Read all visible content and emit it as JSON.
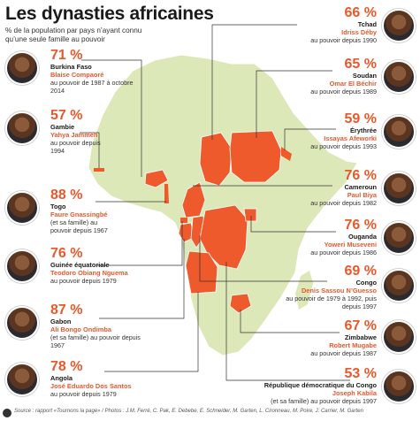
{
  "title": "Les dynasties africaines",
  "subtitle": "% de la population par pays n’ayant connu qu’une seule famille au pouvoir",
  "footer": "Source : rapport «Tournons la page» / Photos : J.M. Ferré, C. Pak, E. Debebe, E. Schneider, M. Garten, L. Cironneau, M. Poire, J. Carrier, M. Garten",
  "colors": {
    "accent": "#e8582c",
    "land": "#dde8b9",
    "highlight": "#ee5a2c"
  },
  "left": [
    {
      "pct": "71 %",
      "country": "Burkina Faso",
      "leader": "Blaise Compaoré",
      "since": "au pouvoir de 1987 à octobre 2014"
    },
    {
      "pct": "57 %",
      "country": "Gambie",
      "leader": "Yahya Jammeh",
      "since": "au pouvoir depuis 1994"
    },
    {
      "pct": "88 %",
      "country": "Togo",
      "leader": "Faure Gnassingbé",
      "since": "(et sa famille) au pouvoir depuis 1967"
    },
    {
      "pct": "76 %",
      "country": "Guinée équatoriale",
      "leader": "Teodoro Obiang Nguema",
      "since": "au pouvoir depuis 1979"
    },
    {
      "pct": "87 %",
      "country": "Gabon",
      "leader": "Ali Bongo Ondimba",
      "since": "(et sa famille) au pouvoir depuis 1967"
    },
    {
      "pct": "78 %",
      "country": "Angola",
      "leader": "José Eduardo Dos Santos",
      "since": "au pouvoir depuis 1979"
    }
  ],
  "right": [
    {
      "pct": "66 %",
      "country": "Tchad",
      "leader": "Idriss Déby",
      "since": "au pouvoir depuis 1990"
    },
    {
      "pct": "65 %",
      "country": "Soudan",
      "leader": "Omar El Béchir",
      "since": "au pouvoir depuis 1989"
    },
    {
      "pct": "59 %",
      "country": "Érythrée",
      "leader": "Issayas Afeworki",
      "since": "au pouvoir depuis 1993"
    },
    {
      "pct": "76 %",
      "country": "Cameroun",
      "leader": "Paul Biya",
      "since": "au pouvoir depuis 1982"
    },
    {
      "pct": "76 %",
      "country": "Ouganda",
      "leader": "Yoweri Museveni",
      "since": "au pouvoir depuis 1986"
    },
    {
      "pct": "69 %",
      "country": "Congo",
      "leader": "Denis Sassou N’Guesso",
      "since": "au pouvoir de 1979 à 1992, puis depuis 1997"
    },
    {
      "pct": "67 %",
      "country": "Zimbabwe",
      "leader": "Robert Mugabe",
      "since": "au pouvoir depuis 1987"
    },
    {
      "pct": "53 %",
      "country": "République démocratique du Congo",
      "leader": "Joseph Kabila",
      "since": "(et sa famille) au pouvoir depuis 1997"
    }
  ]
}
